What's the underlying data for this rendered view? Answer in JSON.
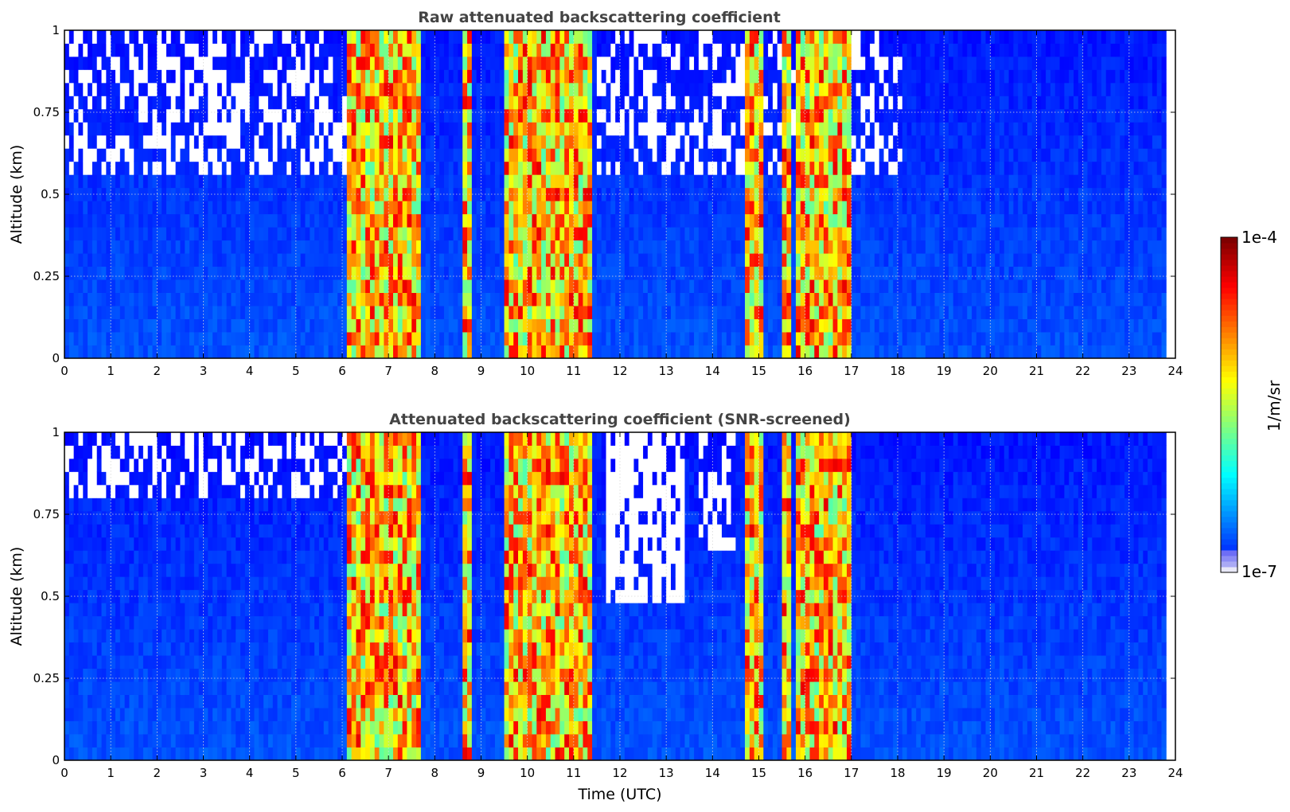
{
  "figure": {
    "colorbar": {
      "max_label": "1e-4",
      "min_label": "1e-7",
      "unit_label": "1/m/sr",
      "colormap": "jet",
      "min_color": "#e8e8f8",
      "max_color": "#7f0000",
      "ticks": [
        {
          "label": "1e-4",
          "value": 0.0001
        },
        {
          "label": "1e-7",
          "value": 1e-07
        }
      ]
    }
  },
  "chart_data": [
    {
      "type": "heatmap",
      "title": "Raw attenuated backscattering coefficient",
      "xlabel": "",
      "ylabel": "Altitude (km)",
      "xlim": [
        0,
        24
      ],
      "ylim": [
        0,
        1
      ],
      "x_ticks": [
        "0",
        "1",
        "2",
        "3",
        "4",
        "5",
        "6",
        "7",
        "8",
        "9",
        "10",
        "11",
        "12",
        "13",
        "14",
        "15",
        "16",
        "17",
        "18",
        "19",
        "20",
        "21",
        "22",
        "23",
        "24"
      ],
      "y_ticks": [
        "0",
        "0.25",
        "0.5",
        "0.75",
        "1"
      ],
      "grid": true,
      "data_end_hour": 23.8,
      "scale": "log",
      "value_range": [
        1e-07,
        0.0001
      ],
      "high_backscatter_periods_utc": [
        [
          6.0,
          7.6
        ],
        [
          8.5,
          8.75
        ],
        [
          9.4,
          11.3
        ],
        [
          14.6,
          15.0
        ],
        [
          15.4,
          15.6
        ],
        [
          15.7,
          16.9
        ]
      ]
    },
    {
      "type": "heatmap",
      "title": "Attenuated backscattering coefficient (SNR-screened)",
      "xlabel": "Time (UTC)",
      "ylabel": "Altitude (km)",
      "xlim": [
        0,
        24
      ],
      "ylim": [
        0,
        1
      ],
      "x_ticks": [
        "0",
        "1",
        "2",
        "3",
        "4",
        "5",
        "6",
        "7",
        "8",
        "9",
        "10",
        "11",
        "12",
        "13",
        "14",
        "15",
        "16",
        "17",
        "18",
        "19",
        "20",
        "21",
        "22",
        "23",
        "24"
      ],
      "y_ticks": [
        "0",
        "0.25",
        "0.5",
        "0.75",
        "1"
      ],
      "grid": true,
      "data_end_hour": 23.8,
      "scale": "log",
      "value_range": [
        1e-07,
        0.0001
      ],
      "high_backscatter_periods_utc": [
        [
          6.0,
          7.6
        ],
        [
          8.5,
          8.75
        ],
        [
          9.4,
          11.3
        ],
        [
          14.6,
          15.0
        ],
        [
          15.4,
          15.6
        ],
        [
          15.7,
          16.9
        ]
      ]
    }
  ]
}
